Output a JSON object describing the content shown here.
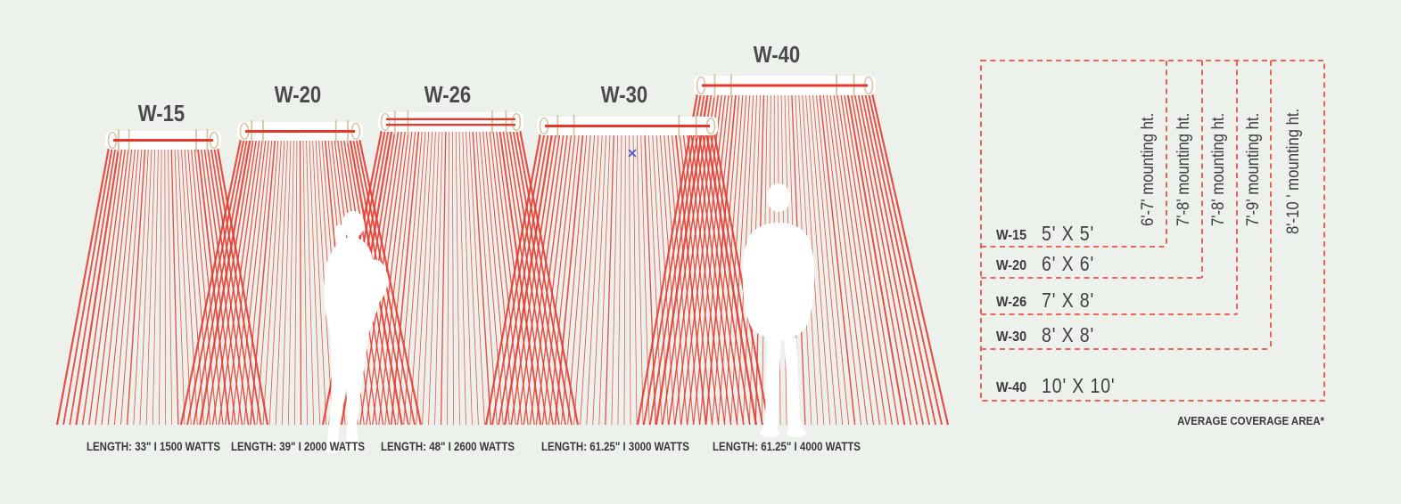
{
  "colors": {
    "background": "#ECF1EC",
    "ray_red": "#E6372C",
    "dash_red": "#EE5145",
    "element_red": "#E6372C",
    "bracket_tan": "#D3C6A4",
    "silhouette_white": "#FFFFFF",
    "text_dark": "#4A4A4A",
    "marker_blue": "#4257CE"
  },
  "units": [
    {
      "model": "W-15",
      "caption": "LENGTH: 33\" I 1500 WATTS",
      "coverage": "5' X 5'",
      "mounting": "6'-7' mounting ht."
    },
    {
      "model": "W-20",
      "caption": "LENGTH: 39\" I 2000 WATTS",
      "coverage": "6' X 6'",
      "mounting": "7'-8' mounting ht."
    },
    {
      "model": "W-26",
      "caption": "LENGTH: 48\" I 2600 WATTS",
      "coverage": "7' X 8'",
      "mounting": "7'-8' mounting ht."
    },
    {
      "model": "W-30",
      "caption": "LENGTH: 61.25\" I 3000 WATTS",
      "coverage": "8' X 8'",
      "mounting": "7'-9' mounting ht."
    },
    {
      "model": "W-40",
      "caption": "LENGTH: 61.25\" I 4000 WATTS",
      "coverage": "10' X 10'",
      "mounting": "8'-10 ' mounting ht."
    }
  ],
  "table": {
    "footnote": "AVERAGE COVERAGE AREA*"
  }
}
